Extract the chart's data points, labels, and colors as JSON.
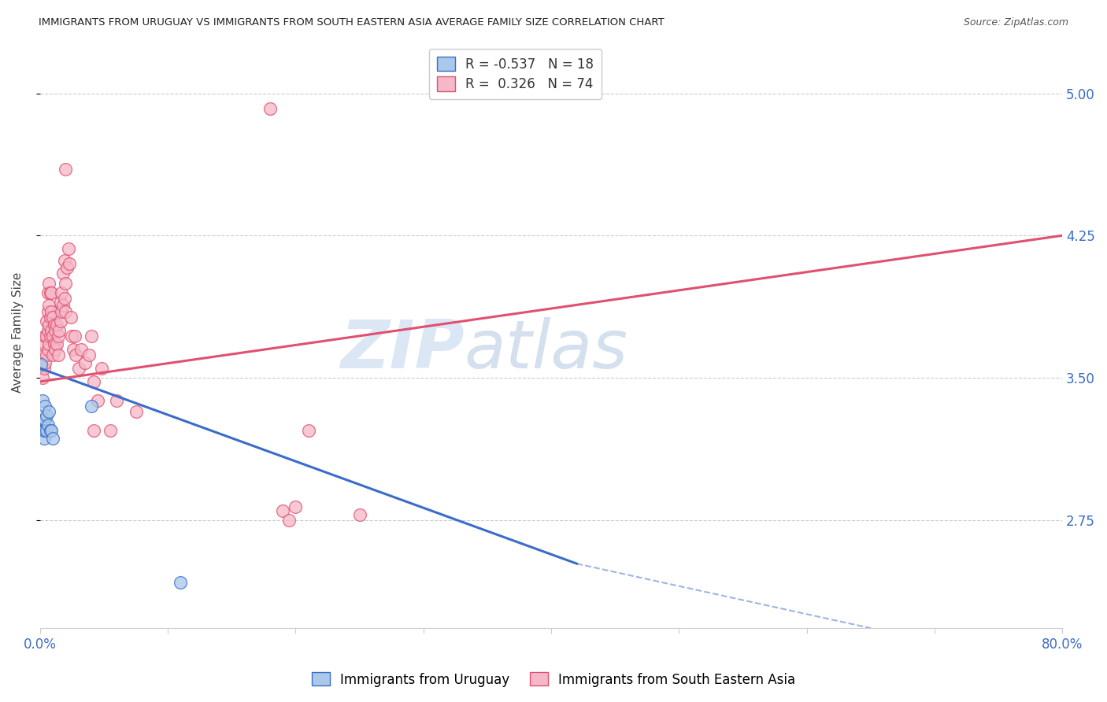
{
  "title": "IMMIGRANTS FROM URUGUAY VS IMMIGRANTS FROM SOUTH EASTERN ASIA AVERAGE FAMILY SIZE CORRELATION CHART",
  "source": "Source: ZipAtlas.com",
  "ylabel": "Average Family Size",
  "yticks": [
    2.75,
    3.5,
    4.25,
    5.0
  ],
  "xlim": [
    0.0,
    0.8
  ],
  "ylim": [
    2.18,
    5.3
  ],
  "legend1_label_r": "-0.537",
  "legend1_label_n": "18",
  "legend2_label_r": "0.326",
  "legend2_label_n": "74",
  "legend1_fill": "#aac8ea",
  "legend2_fill": "#f5b8c8",
  "line1_color": "#3b6cc9",
  "line2_color": "#e05070",
  "watermark_zip": "ZIP",
  "watermark_atlas": "atlas",
  "bottom_label1": "Immigrants from Uruguay",
  "bottom_label2": "Immigrants from South Eastern Asia",
  "uruguay_points": [
    [
      0.001,
      3.57
    ],
    [
      0.002,
      3.38
    ],
    [
      0.002,
      3.22
    ],
    [
      0.003,
      3.28
    ],
    [
      0.003,
      3.22
    ],
    [
      0.003,
      3.18
    ],
    [
      0.004,
      3.35
    ],
    [
      0.004,
      3.28
    ],
    [
      0.004,
      3.22
    ],
    [
      0.005,
      3.3
    ],
    [
      0.005,
      3.22
    ],
    [
      0.006,
      3.25
    ],
    [
      0.007,
      3.32
    ],
    [
      0.008,
      3.22
    ],
    [
      0.009,
      3.22
    ],
    [
      0.01,
      3.18
    ],
    [
      0.04,
      3.35
    ],
    [
      0.11,
      2.42
    ]
  ],
  "sea_points": [
    [
      0.002,
      3.5
    ],
    [
      0.003,
      3.55
    ],
    [
      0.003,
      3.62
    ],
    [
      0.004,
      3.58
    ],
    [
      0.004,
      3.68
    ],
    [
      0.004,
      3.72
    ],
    [
      0.005,
      3.62
    ],
    [
      0.005,
      3.72
    ],
    [
      0.005,
      3.8
    ],
    [
      0.006,
      3.65
    ],
    [
      0.006,
      3.75
    ],
    [
      0.006,
      3.85
    ],
    [
      0.006,
      3.95
    ],
    [
      0.007,
      3.68
    ],
    [
      0.007,
      3.78
    ],
    [
      0.007,
      3.88
    ],
    [
      0.007,
      4.0
    ],
    [
      0.008,
      3.72
    ],
    [
      0.008,
      3.82
    ],
    [
      0.008,
      3.95
    ],
    [
      0.009,
      3.75
    ],
    [
      0.009,
      3.85
    ],
    [
      0.009,
      3.95
    ],
    [
      0.01,
      3.62
    ],
    [
      0.01,
      3.72
    ],
    [
      0.01,
      3.82
    ],
    [
      0.011,
      3.68
    ],
    [
      0.011,
      3.78
    ],
    [
      0.012,
      3.65
    ],
    [
      0.012,
      3.75
    ],
    [
      0.013,
      3.68
    ],
    [
      0.013,
      3.78
    ],
    [
      0.014,
      3.62
    ],
    [
      0.014,
      3.72
    ],
    [
      0.015,
      3.75
    ],
    [
      0.016,
      3.8
    ],
    [
      0.016,
      3.9
    ],
    [
      0.017,
      3.85
    ],
    [
      0.017,
      3.95
    ],
    [
      0.018,
      3.88
    ],
    [
      0.018,
      4.05
    ],
    [
      0.019,
      3.92
    ],
    [
      0.019,
      4.12
    ],
    [
      0.02,
      3.85
    ],
    [
      0.02,
      4.0
    ],
    [
      0.021,
      4.08
    ],
    [
      0.022,
      4.18
    ],
    [
      0.023,
      4.1
    ],
    [
      0.024,
      3.82
    ],
    [
      0.025,
      3.72
    ],
    [
      0.026,
      3.65
    ],
    [
      0.027,
      3.72
    ],
    [
      0.028,
      3.62
    ],
    [
      0.03,
      3.55
    ],
    [
      0.032,
      3.65
    ],
    [
      0.035,
      3.58
    ],
    [
      0.038,
      3.62
    ],
    [
      0.04,
      3.72
    ],
    [
      0.042,
      3.48
    ],
    [
      0.045,
      3.38
    ],
    [
      0.048,
      3.55
    ],
    [
      0.02,
      4.6
    ],
    [
      0.042,
      3.22
    ],
    [
      0.055,
      3.22
    ],
    [
      0.06,
      3.38
    ],
    [
      0.075,
      3.32
    ],
    [
      0.18,
      4.92
    ],
    [
      0.2,
      2.82
    ],
    [
      0.21,
      3.22
    ],
    [
      0.25,
      2.78
    ],
    [
      0.19,
      2.8
    ],
    [
      0.195,
      2.75
    ]
  ]
}
